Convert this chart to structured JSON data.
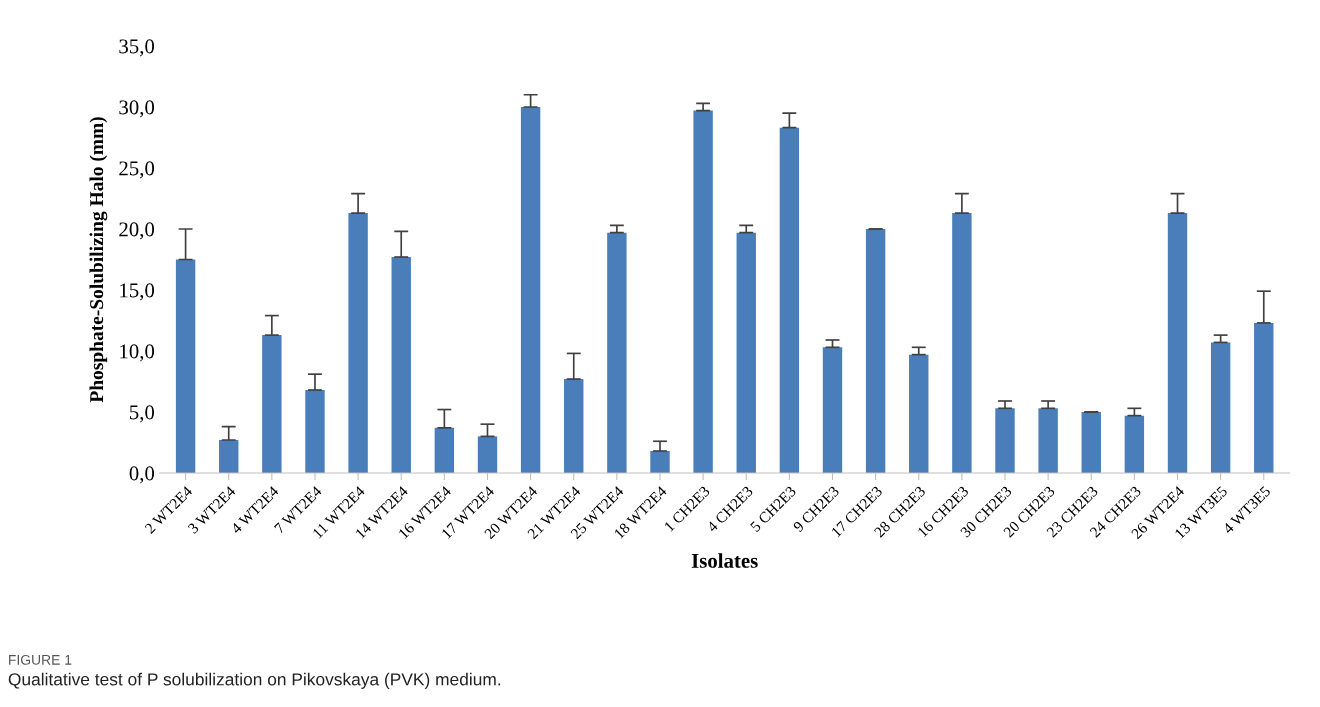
{
  "chart_data": {
    "type": "bar",
    "xlabel": "Isolates",
    "ylabel": "Phosphate-Solubilizing Halo (mm)",
    "categories": [
      "2 WT2E4",
      "3 WT2E4",
      "4 WT2E4",
      "7 WT2E4",
      "11 WT2E4",
      "14 WT2E4",
      "16 WT2E4",
      "17 WT2E4",
      "20 WT2E4",
      "21 WT2E4",
      "25 WT2E4",
      "18 WT2E4",
      "1 CH2E3",
      "4 CH2E3",
      "5 CH2E3",
      "9 CH2E3",
      "17 CH2E3",
      "28 CH2E3",
      "16 CH2E3",
      "30 CH2E3",
      "20 CH2E3",
      "23 CH2E3",
      "24 CH2E3",
      "26 WT2E4",
      "13 WT3E5",
      "4 WT3E5"
    ],
    "values": [
      17.5,
      2.7,
      11.3,
      6.8,
      21.3,
      17.7,
      3.7,
      3.0,
      30.0,
      7.7,
      19.7,
      1.8,
      29.7,
      19.7,
      28.3,
      10.3,
      20.0,
      9.7,
      21.3,
      5.3,
      5.3,
      5.0,
      4.7,
      21.3,
      10.7,
      12.3
    ],
    "errors": [
      [
        17.5,
        20.0
      ],
      [
        2.7,
        3.8
      ],
      [
        11.3,
        12.9
      ],
      [
        6.8,
        8.1
      ],
      [
        21.3,
        22.9
      ],
      [
        17.7,
        19.8
      ],
      [
        3.7,
        5.2
      ],
      [
        3.0,
        4.0
      ],
      [
        30.0,
        31.0
      ],
      [
        7.7,
        9.8
      ],
      [
        19.7,
        20.3
      ],
      [
        1.8,
        2.6
      ],
      [
        29.7,
        30.3
      ],
      [
        19.7,
        20.3
      ],
      [
        28.3,
        29.5
      ],
      [
        10.3,
        10.9
      ],
      [
        20.0,
        20.0
      ],
      [
        9.7,
        10.3
      ],
      [
        21.3,
        22.9
      ],
      [
        5.3,
        5.9
      ],
      [
        5.3,
        5.9
      ],
      [
        5.0,
        5.0
      ],
      [
        4.7,
        5.3
      ],
      [
        21.3,
        22.9
      ],
      [
        10.7,
        11.3
      ],
      [
        12.3,
        14.9
      ]
    ],
    "color": "#4a7ebb",
    "ylim": [
      0,
      35
    ],
    "yticks": [
      {
        "value": 0,
        "label": "0,0"
      },
      {
        "value": 5,
        "label": "5,0"
      },
      {
        "value": 10,
        "label": "10,0"
      },
      {
        "value": 15,
        "label": "15,0"
      },
      {
        "value": 20,
        "label": "20,0"
      },
      {
        "value": 25,
        "label": "25,0"
      },
      {
        "value": 30,
        "label": "30,0"
      },
      {
        "value": 35,
        "label": "35,0"
      }
    ],
    "grid": false,
    "legend": false,
    "annotations": [
      "FIGURE 1",
      "Qualitative test of P solubilization on Pikovskaya (PVK) medium."
    ]
  }
}
